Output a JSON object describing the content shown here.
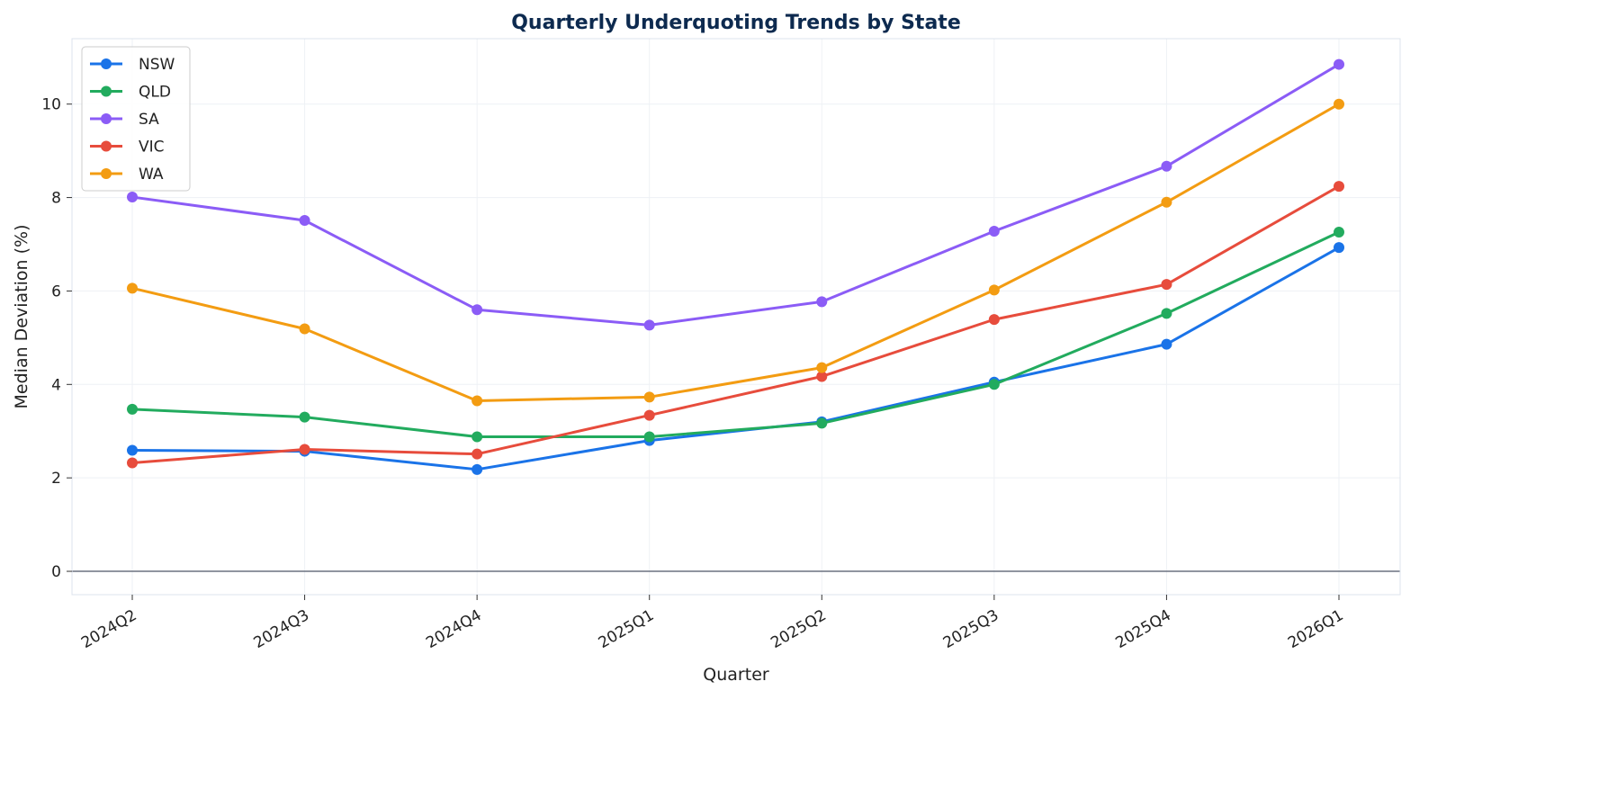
{
  "chart_data": {
    "type": "line",
    "title": "Quarterly Underquoting Trends by State",
    "xlabel": "Quarter",
    "ylabel": "Median Deviation (%)",
    "categories": [
      "2024Q2",
      "2024Q3",
      "2024Q4",
      "2025Q1",
      "2025Q2",
      "2025Q3",
      "2025Q4",
      "2026Q1"
    ],
    "ylim": [
      -0.5,
      11.4
    ],
    "yticks": [
      0,
      2,
      4,
      6,
      8,
      10
    ],
    "grid": true,
    "legend": "top-left",
    "reference_line_y": 0,
    "series": [
      {
        "name": "NSW",
        "color": "#1a73e8",
        "values": [
          2.59,
          2.57,
          2.18,
          2.8,
          3.2,
          4.05,
          4.86,
          6.93
        ]
      },
      {
        "name": "QLD",
        "color": "#22ab5e",
        "values": [
          3.47,
          3.3,
          2.88,
          2.88,
          3.17,
          4.0,
          5.52,
          7.26
        ]
      },
      {
        "name": "SA",
        "color": "#8b5cf6",
        "values": [
          8.01,
          7.51,
          5.6,
          5.27,
          5.77,
          7.28,
          8.67,
          10.85
        ]
      },
      {
        "name": "VIC",
        "color": "#e74c3c",
        "values": [
          2.32,
          2.61,
          2.51,
          3.34,
          4.17,
          5.39,
          6.14,
          8.24
        ]
      },
      {
        "name": "WA",
        "color": "#f39c12",
        "values": [
          6.06,
          5.19,
          3.65,
          3.73,
          4.36,
          6.02,
          7.9,
          10.0
        ]
      }
    ]
  }
}
